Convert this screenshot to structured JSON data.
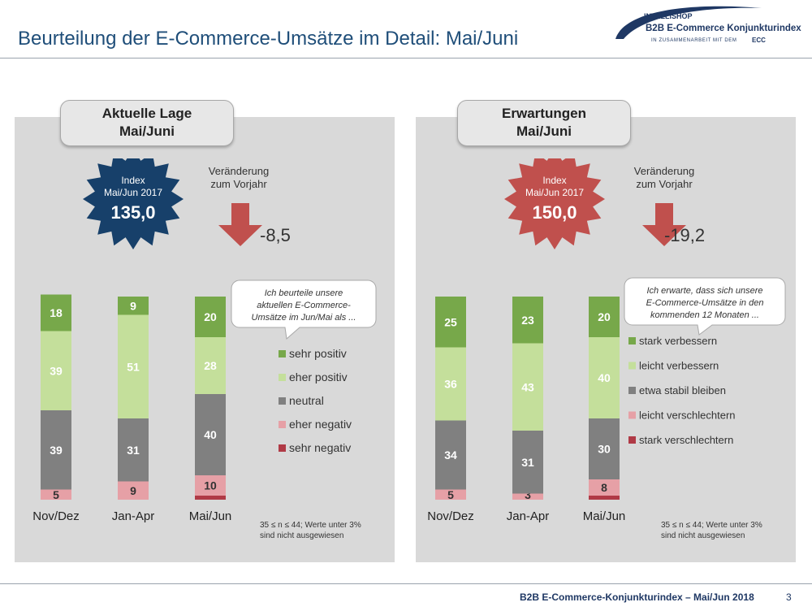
{
  "title": "Beurteilung der E-Commerce-Umsätze im Detail: Mai/Juni",
  "logo": {
    "brand": "INTELLISHOP",
    "product": "B2B E-Commerce Konjunkturindex",
    "partner_text": "IN ZUSAMMENARBEIT MIT DEM",
    "partner": "ECC"
  },
  "footer": {
    "text": "B2B E-Commerce-Konjunkturindex – Mai/Jun 2018",
    "page": "3"
  },
  "panels": {
    "left": {
      "header_line1": "Aktuelle Lage",
      "header_line2": "Mai/Juni",
      "badge_label1": "Index",
      "badge_label2": "Mai/Jun 2017",
      "badge_value": "135,0",
      "change_label1": "Veränderung",
      "change_label2": "zum Vorjahr",
      "change_value": "-8,5",
      "callout_lines": [
        "Ich beurteile unsere",
        "aktuellen E-Commerce-",
        "Umsätze im Jun/Mai als ..."
      ],
      "note_line1": "35 ≤ n ≤ 44; Werte unter 3%",
      "note_line2": "sind nicht ausgewiesen"
    },
    "right": {
      "header_line1": "Erwartungen",
      "header_line2": "Mai/Juni",
      "badge_label1": "Index",
      "badge_label2": "Mai/Jun 2017",
      "badge_value": "150,0",
      "change_label1": "Veränderung",
      "change_label2": "zum Vorjahr",
      "change_value": "-19,2",
      "callout_lines": [
        "Ich erwarte, dass sich unsere",
        "E-Commerce-Umsätze in den",
        "kommenden 12 Monaten ..."
      ],
      "note_line1": "35 ≤ n ≤ 44; Werte unter 3%",
      "note_line2": "sind nicht ausgewiesen"
    }
  },
  "colors": {
    "navy": "#1f4e79",
    "badge_left": "#17406a",
    "badge_right": "#c0504d",
    "arrow": "#c0504d",
    "seg_top": "#77a84a",
    "seg_second": "#c4df9b",
    "seg_neutral": "#808080",
    "seg_neg": "#e6a0a6",
    "seg_strong_neg": "#b03a46"
  },
  "chart_data": [
    {
      "type": "bar",
      "stacked": true,
      "title": "Aktuelle Lage Mai/Juni",
      "categories": [
        "Nov/Dez",
        "Jan-Apr",
        "Mai/Jun"
      ],
      "series": [
        {
          "name": "sehr positiv",
          "values": [
            18,
            9,
            20
          ],
          "labels": [
            "18",
            "9",
            "20"
          ]
        },
        {
          "name": "eher positiv",
          "values": [
            39,
            51,
            28
          ],
          "labels": [
            "39",
            "51",
            "28"
          ]
        },
        {
          "name": "neutral",
          "values": [
            39,
            31,
            40
          ],
          "labels": [
            "39",
            "31",
            "40"
          ]
        },
        {
          "name": "eher negativ",
          "values": [
            5,
            9,
            10
          ],
          "labels": [
            "5",
            "9",
            "10"
          ]
        },
        {
          "name": "sehr negativ",
          "values": [
            0,
            0,
            2
          ],
          "labels": [
            "",
            "",
            ""
          ]
        }
      ],
      "ylim": [
        0,
        100
      ],
      "legend": "right"
    },
    {
      "type": "bar",
      "stacked": true,
      "title": "Erwartungen Mai/Juni",
      "categories": [
        "Nov/Dez",
        "Jan-Apr",
        "Mai/Jun"
      ],
      "series": [
        {
          "name": "stark verbessern",
          "values": [
            25,
            23,
            20
          ],
          "labels": [
            "25",
            "23",
            "20"
          ]
        },
        {
          "name": "leicht verbessern",
          "values": [
            36,
            43,
            40
          ],
          "labels": [
            "36",
            "43",
            "40"
          ]
        },
        {
          "name": "etwa stabil bleiben",
          "values": [
            34,
            31,
            30
          ],
          "labels": [
            "34",
            "31",
            "30"
          ]
        },
        {
          "name": "leicht verschlechtern",
          "values": [
            5,
            3,
            8
          ],
          "labels": [
            "5",
            "3",
            "8"
          ]
        },
        {
          "name": "stark verschlechtern",
          "values": [
            0,
            0,
            2
          ],
          "labels": [
            "",
            "",
            ""
          ]
        }
      ],
      "ylim": [
        0,
        100
      ],
      "legend": "right"
    }
  ]
}
